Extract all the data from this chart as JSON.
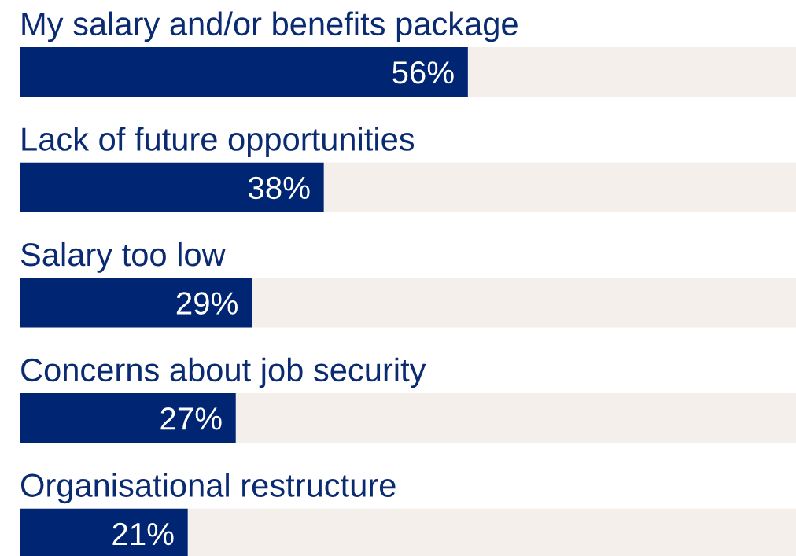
{
  "chart_data": {
    "type": "bar",
    "orientation": "horizontal",
    "categories": [
      "My salary and/or benefits package",
      "Lack of future opportunities",
      "Salary too low",
      "Concerns about job security",
      "Organisational restructure"
    ],
    "values": [
      56,
      38,
      29,
      27,
      21
    ],
    "color": "#002673",
    "value_labels": [
      "56%",
      "38%",
      "29%",
      "27%",
      "21%"
    ],
    "xlim": [
      0,
      97
    ],
    "tick_labels": false
  }
}
